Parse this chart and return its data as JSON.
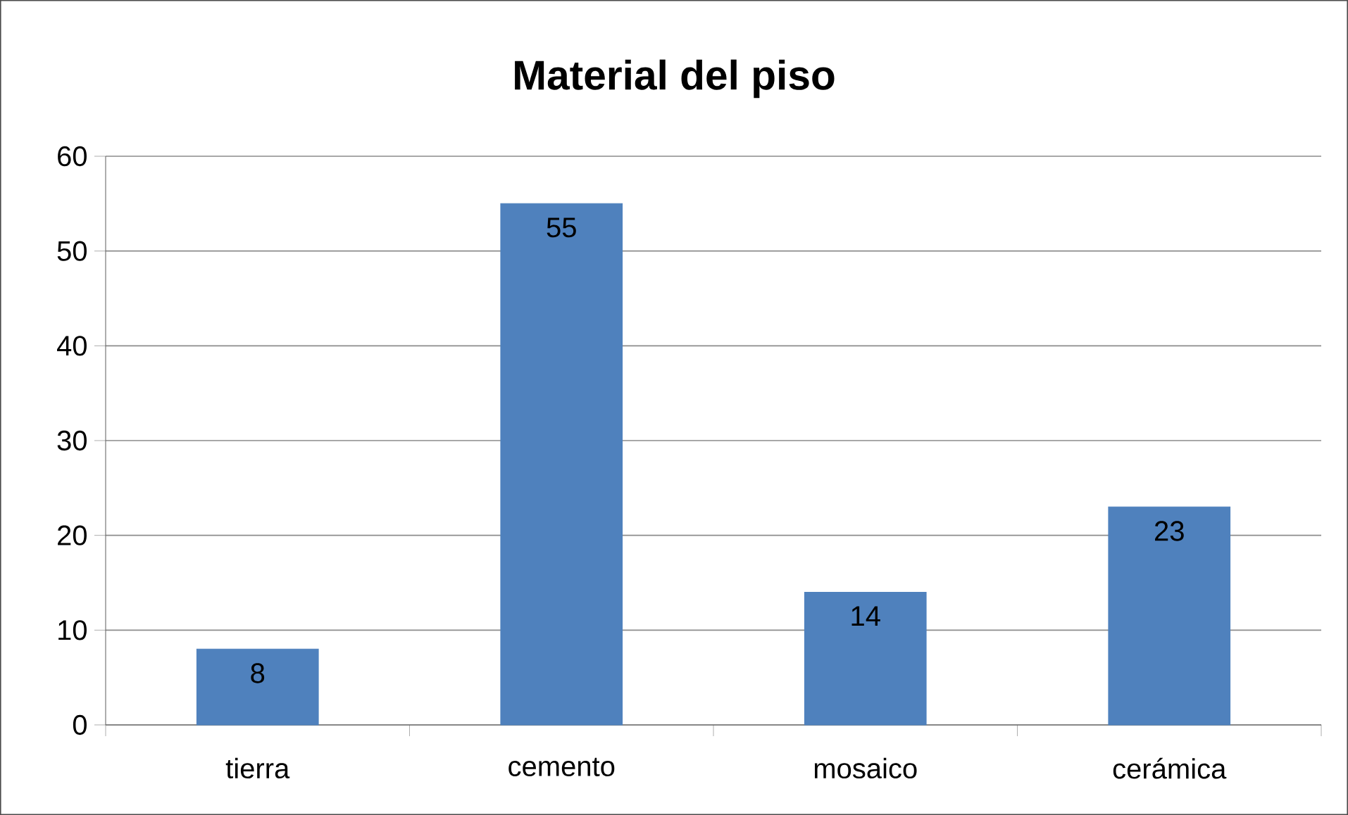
{
  "chart_data": {
    "type": "bar",
    "title": "Material del piso",
    "categories": [
      "tierra",
      "cemento",
      "mosaico",
      "cerámica"
    ],
    "values": [
      8,
      55,
      14,
      23
    ],
    "color": "#4f81bd",
    "ylim": [
      0,
      60
    ],
    "yticks": [
      0,
      10,
      20,
      30,
      40,
      50,
      60
    ],
    "grid": "y",
    "data_labels": true
  }
}
